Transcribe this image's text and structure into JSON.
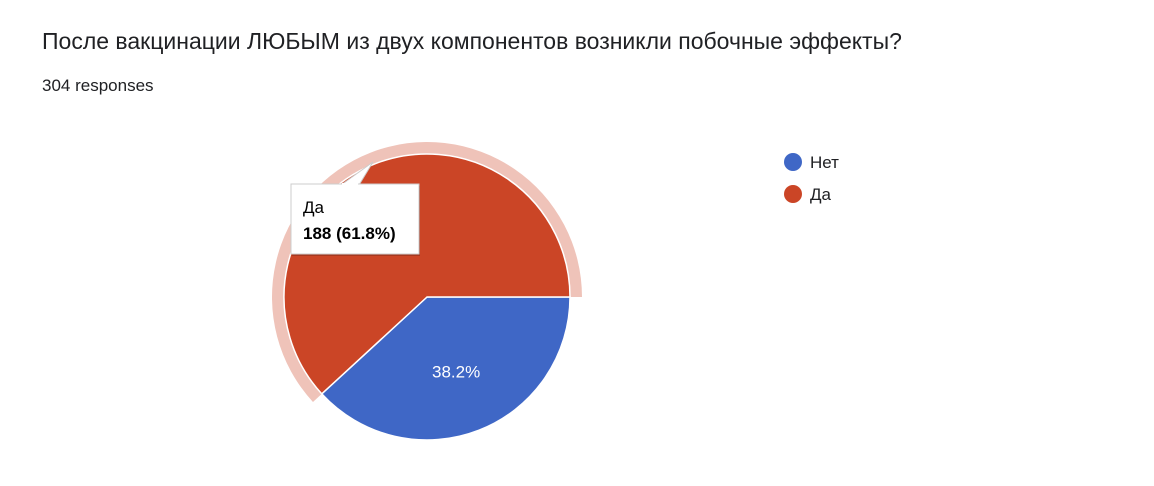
{
  "question": {
    "title": "После вакцинации ЛЮБЫМ из двух компонентов возникли побочные эффекты?",
    "responses": "304 responses"
  },
  "colors": {
    "net": "#3f67c6",
    "da": "#cb4526",
    "highlight": "#efc3b9"
  },
  "chart_data": {
    "type": "pie",
    "total": 304,
    "slices": [
      {
        "label": "Нет",
        "value": 116,
        "percent": 38.2,
        "percent_label": "38.2%",
        "color": "#3f67c6"
      },
      {
        "label": "Да",
        "value": 188,
        "percent": 61.8,
        "percent_label": "61.8%",
        "color": "#cb4526"
      }
    ],
    "legend": [
      "Нет",
      "Да"
    ],
    "legend_position": "right",
    "start_angle": "3 o'clock, clockwise",
    "tooltip": {
      "title": "Да",
      "value": "188 (61.8%)"
    }
  }
}
